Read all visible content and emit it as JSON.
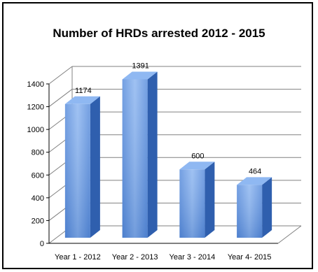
{
  "chart_data": {
    "type": "bar",
    "title": "Number of HRDs arrested 2012 - 2015",
    "categories": [
      "Year 1 - 2012",
      "Year 2 - 2013",
      "Year 3 - 2014",
      "Year 4- 2015"
    ],
    "values": [
      1174,
      1391,
      600,
      464
    ],
    "data_labels": [
      "1174",
      "1391",
      "600",
      "464"
    ],
    "ylim": [
      0,
      1400
    ],
    "yticks": [
      0,
      200,
      400,
      600,
      800,
      1000,
      1200,
      1400
    ],
    "xlabel": "",
    "ylabel": "",
    "grid": true,
    "style": "3d-column",
    "colors": {
      "bar_front": "#6d9ee8",
      "bar_side": "#2f5fae",
      "bar_top": "#8fb8f2",
      "grid": "#808080"
    }
  }
}
